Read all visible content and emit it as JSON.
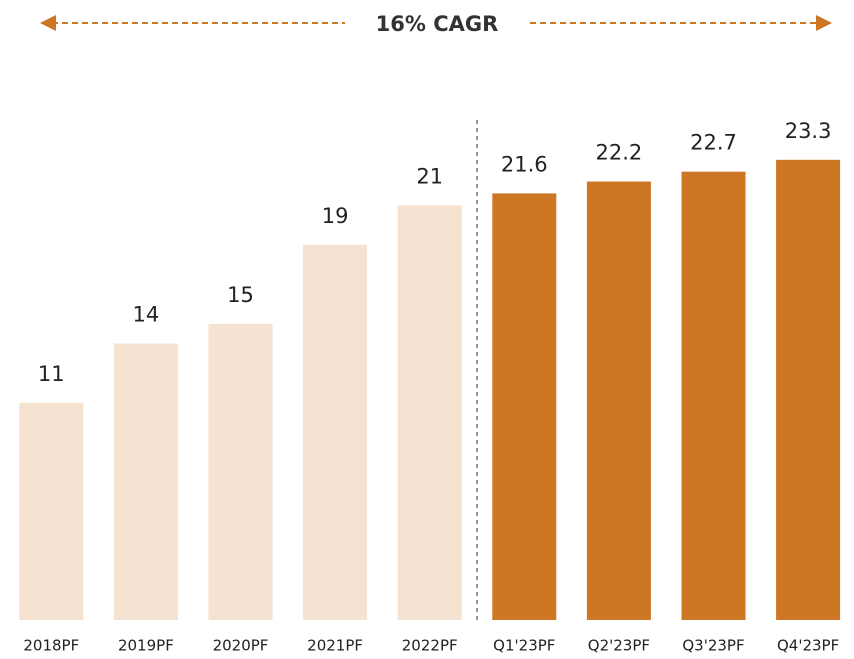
{
  "chart_data": {
    "type": "bar",
    "annotation": "16% CAGR",
    "categories": [
      "2018PF",
      "2019PF",
      "2020PF",
      "2021PF",
      "2022PF",
      "Q1'23PF",
      "Q2'23PF",
      "Q3'23PF",
      "Q4'23PF"
    ],
    "values": [
      11,
      14,
      15,
      19,
      21,
      21.6,
      22.2,
      22.7,
      23.3
    ],
    "colors": [
      "#f6e2d1",
      "#f6e2d1",
      "#f6e2d1",
      "#f6e2d1",
      "#f6e2d1",
      "#cd7624",
      "#cd7624",
      "#cd7624",
      "#cd7624"
    ]
  }
}
